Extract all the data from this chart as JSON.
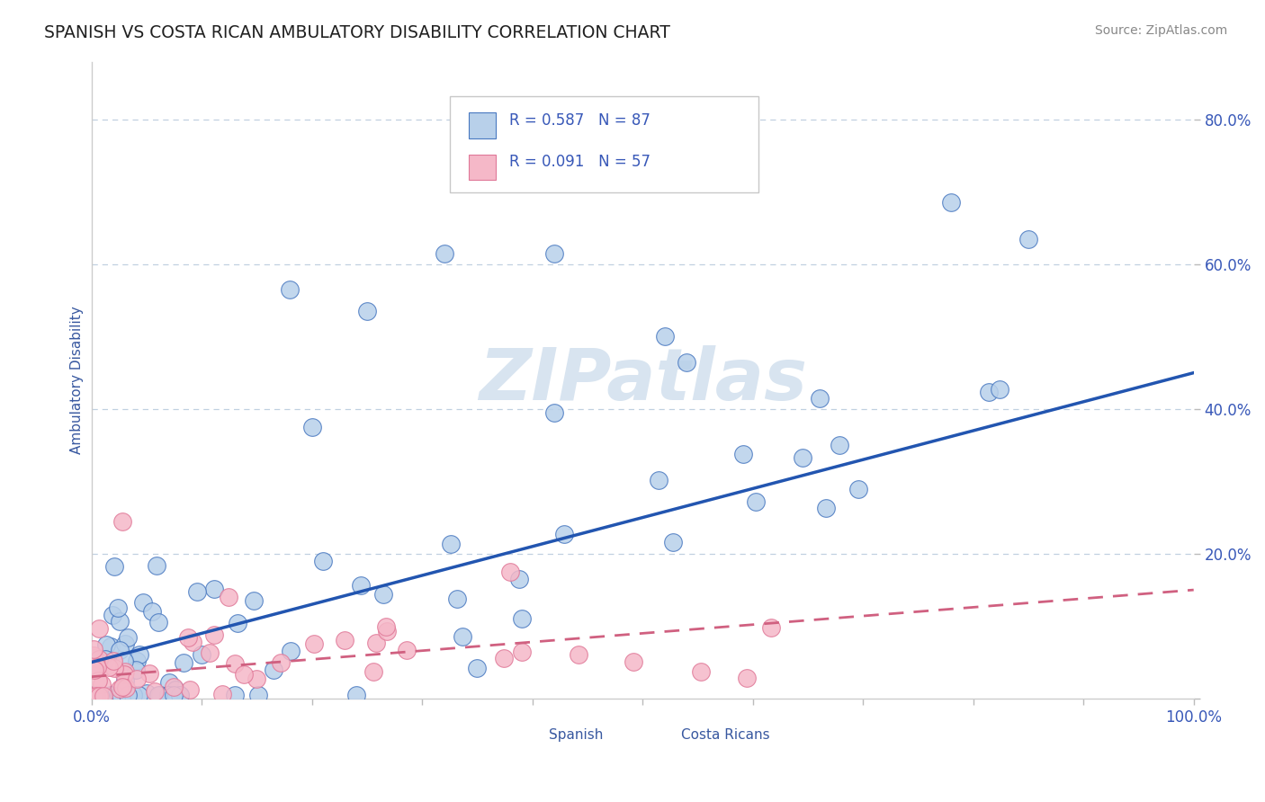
{
  "title": "SPANISH VS COSTA RICAN AMBULATORY DISABILITY CORRELATION CHART",
  "source": "Source: ZipAtlas.com",
  "ylabel": "Ambulatory Disability",
  "ytick_labels": [
    "",
    "20.0%",
    "40.0%",
    "60.0%",
    "80.0%"
  ],
  "xlim": [
    0.0,
    1.0
  ],
  "ylim": [
    0.0,
    0.88
  ],
  "legend_r_spanish": "R = 0.587",
  "legend_n_spanish": "N = 87",
  "legend_r_costa": "R = 0.091",
  "legend_n_costa": "N = 57",
  "spanish_fill": "#b8d0ea",
  "costa_fill": "#f5b8c8",
  "spanish_edge": "#4878c0",
  "costa_edge": "#e07898",
  "spanish_line_color": "#2255b0",
  "costa_line_color": "#d06080",
  "background_color": "#ffffff",
  "grid_color": "#c0d0e0",
  "title_color": "#202020",
  "axis_label_color": "#3858a0",
  "tick_label_color": "#3858b8",
  "source_color": "#888888",
  "watermark_color": "#d8e4f0",
  "watermark": "ZIPatlas",
  "legend_text_color": "#3858b8",
  "legend_border_color": "#c8c8c8"
}
